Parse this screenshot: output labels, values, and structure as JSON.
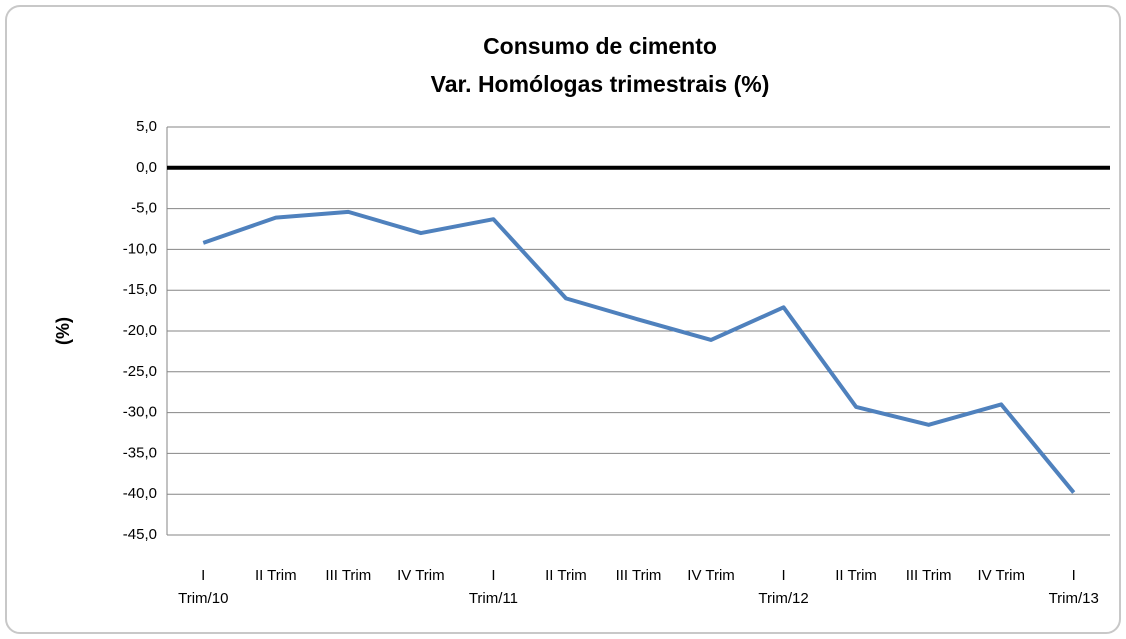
{
  "chart_data": {
    "type": "line",
    "title": "Consumo de cimento",
    "subtitle": "Var. Homólogas trimestrais (%)",
    "y_label": "(%)",
    "categories": [
      "I\nTrim/10",
      "II Trim",
      "III Trim",
      "IV Trim",
      "I\nTrim/11",
      "II Trim",
      "III Trim",
      "IV Trim",
      "I\nTrim/12",
      "II Trim",
      "III Trim",
      "IV Trim",
      "I\nTrim/13"
    ],
    "values": [
      -9.2,
      -6.1,
      -5.4,
      -8.0,
      -6.3,
      -16.0,
      -18.6,
      -21.1,
      -17.1,
      -29.3,
      -31.5,
      -29.0,
      -39.8
    ],
    "color": "#4f81bd",
    "ylim": [
      -45,
      5
    ],
    "yticks": [
      {
        "value": 5,
        "label": "5,0"
      },
      {
        "value": 0,
        "label": "0,0"
      },
      {
        "value": -5,
        "label": "-5,0"
      },
      {
        "value": -10,
        "label": "-10,0"
      },
      {
        "value": -15,
        "label": "-15,0"
      },
      {
        "value": -20,
        "label": "-20,0"
      },
      {
        "value": -25,
        "label": "-25,0"
      },
      {
        "value": -30,
        "label": "-30,0"
      },
      {
        "value": -35,
        "label": "-35,0"
      },
      {
        "value": -40,
        "label": "-40,0"
      },
      {
        "value": -45,
        "label": "-45,0"
      }
    ],
    "grid": true,
    "zero_line": true
  }
}
